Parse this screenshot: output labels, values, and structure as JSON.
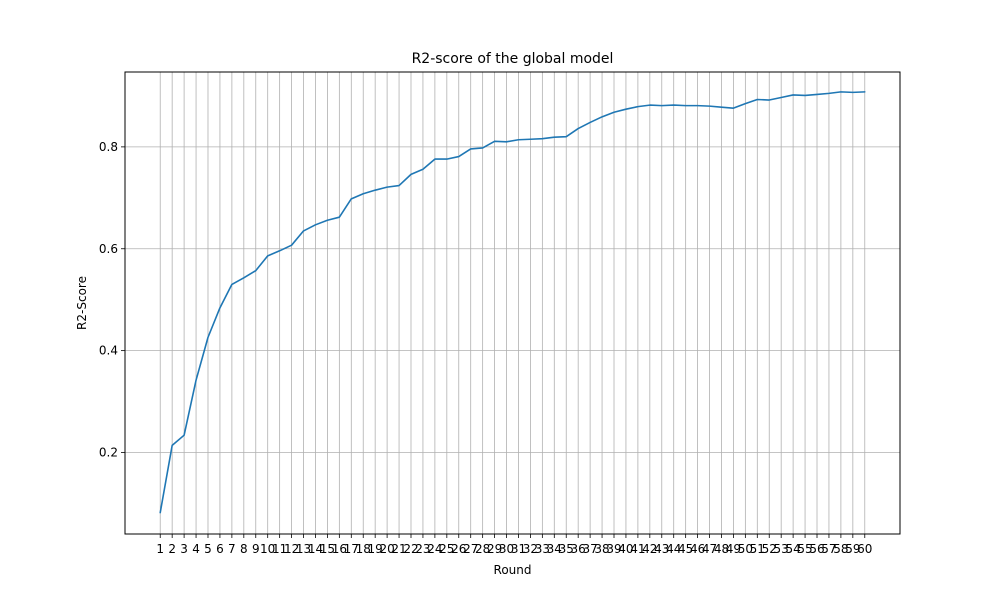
{
  "chart_data": {
    "type": "line",
    "title": "R2-score of the global model",
    "xlabel": "Round",
    "ylabel": "R2-Score",
    "x": [
      1,
      2,
      3,
      4,
      5,
      6,
      7,
      8,
      9,
      10,
      11,
      12,
      13,
      14,
      15,
      16,
      17,
      18,
      19,
      20,
      21,
      22,
      23,
      24,
      25,
      26,
      27,
      28,
      29,
      30,
      31,
      32,
      33,
      34,
      35,
      36,
      37,
      38,
      39,
      40,
      41,
      42,
      43,
      44,
      45,
      46,
      47,
      48,
      49,
      50,
      51,
      52,
      53,
      54,
      55,
      56,
      57,
      58,
      59,
      60
    ],
    "xticks": [
      "1",
      "2",
      "3",
      "4",
      "5",
      "6",
      "7",
      "8",
      "9",
      "10",
      "11",
      "12",
      "13",
      "14",
      "15",
      "16",
      "17",
      "18",
      "19",
      "20",
      "21",
      "22",
      "23",
      "24",
      "25",
      "26",
      "27",
      "28",
      "29",
      "30",
      "31",
      "32",
      "33",
      "34",
      "35",
      "36",
      "37",
      "38",
      "39",
      "40",
      "41",
      "42",
      "43",
      "44",
      "45",
      "46",
      "47",
      "48",
      "49",
      "50",
      "51",
      "52",
      "53",
      "54",
      "55",
      "56",
      "57",
      "58",
      "59",
      "60"
    ],
    "yticks": [
      "0.2",
      "0.4",
      "0.6",
      "0.8"
    ],
    "ytick_values": [
      0.2,
      0.4,
      0.6,
      0.8
    ],
    "xlim": [
      -1.95,
      62.95
    ],
    "ylim": [
      0.04,
      0.947
    ],
    "grid": true,
    "series": [
      {
        "color": "#1f77b4",
        "values": [
          0.082,
          0.214,
          0.234,
          0.342,
          0.426,
          0.484,
          0.53,
          0.543,
          0.557,
          0.586,
          0.596,
          0.607,
          0.635,
          0.647,
          0.656,
          0.662,
          0.698,
          0.708,
          0.715,
          0.721,
          0.724,
          0.746,
          0.756,
          0.776,
          0.776,
          0.781,
          0.796,
          0.798,
          0.811,
          0.81,
          0.814,
          0.815,
          0.816,
          0.819,
          0.82,
          0.836,
          0.848,
          0.859,
          0.868,
          0.874,
          0.879,
          0.882,
          0.881,
          0.882,
          0.881,
          0.881,
          0.88,
          0.878,
          0.876,
          0.885,
          0.893,
          0.892,
          0.897,
          0.902,
          0.901,
          0.903,
          0.905,
          0.908,
          0.907,
          0.908
        ]
      }
    ]
  }
}
